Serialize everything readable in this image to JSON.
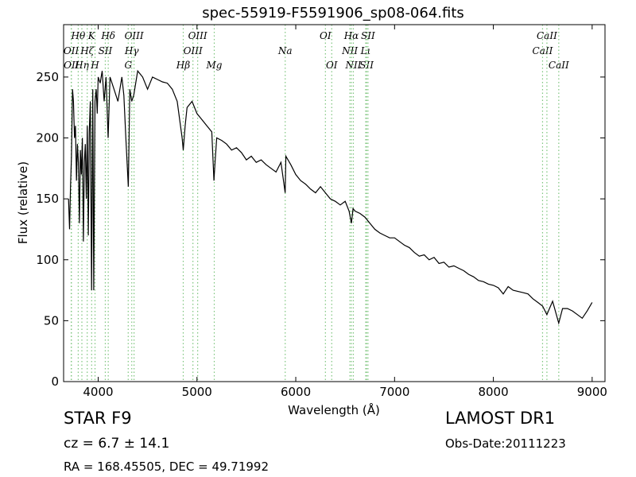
{
  "chart_data": {
    "type": "line",
    "title": "spec-55919-F5591906_sp08-064.fits",
    "xlabel": "Wavelength (Å)",
    "ylabel": "Flux (relative)",
    "xlim": [
      3650,
      9130
    ],
    "ylim": [
      0,
      293
    ],
    "xticks": [
      4000,
      5000,
      6000,
      7000,
      8000,
      9000
    ],
    "yticks": [
      0,
      50,
      100,
      150,
      200,
      250
    ],
    "grid": false,
    "line_color": "#000000",
    "marker_color": "#7cc47c",
    "series": [
      {
        "x": [
          3700,
          3710,
          3720,
          3730,
          3740,
          3750,
          3760,
          3770,
          3780,
          3790,
          3800,
          3810,
          3820,
          3830,
          3840,
          3850,
          3860,
          3870,
          3880,
          3890,
          3900,
          3910,
          3920,
          3933,
          3945,
          3955,
          3968,
          3980,
          3990,
          4000,
          4020,
          4040,
          4060,
          4080,
          4101,
          4120,
          4140,
          4160,
          4180,
          4200,
          4220,
          4240,
          4260,
          4280,
          4305,
          4320,
          4340,
          4360,
          4380,
          4400,
          4450,
          4500,
          4550,
          4600,
          4650,
          4700,
          4750,
          4800,
          4850,
          4861,
          4880,
          4900,
          4950,
          5000,
          5050,
          5100,
          5150,
          5172,
          5183,
          5200,
          5250,
          5300,
          5350,
          5400,
          5450,
          5500,
          5550,
          5600,
          5650,
          5700,
          5750,
          5800,
          5850,
          5893,
          5900,
          5950,
          6000,
          6050,
          6100,
          6150,
          6200,
          6250,
          6300,
          6350,
          6400,
          6450,
          6500,
          6540,
          6563,
          6580,
          6600,
          6650,
          6700,
          6750,
          6800,
          6850,
          6900,
          6950,
          7000,
          7050,
          7100,
          7150,
          7200,
          7250,
          7300,
          7350,
          7400,
          7450,
          7500,
          7550,
          7600,
          7650,
          7700,
          7750,
          7800,
          7850,
          7900,
          7950,
          8000,
          8050,
          8100,
          8150,
          8200,
          8250,
          8300,
          8350,
          8400,
          8450,
          8498,
          8542,
          8600,
          8662,
          8700,
          8750,
          8800,
          8850,
          8900,
          8950,
          9000
        ],
        "values": [
          150,
          125,
          160,
          185,
          240,
          230,
          200,
          210,
          165,
          195,
          180,
          130,
          190,
          170,
          200,
          115,
          180,
          195,
          150,
          210,
          120,
          205,
          230,
          75,
          240,
          75,
          230,
          240,
          220,
          250,
          245,
          255,
          230,
          250,
          200,
          250,
          245,
          240,
          235,
          230,
          240,
          250,
          235,
          200,
          160,
          240,
          230,
          235,
          245,
          255,
          250,
          240,
          250,
          248,
          246,
          245,
          240,
          230,
          200,
          190,
          210,
          225,
          230,
          220,
          215,
          210,
          205,
          165,
          180,
          200,
          198,
          195,
          190,
          192,
          188,
          182,
          185,
          180,
          182,
          178,
          175,
          172,
          180,
          155,
          185,
          178,
          170,
          165,
          162,
          158,
          155,
          160,
          155,
          150,
          148,
          145,
          148,
          140,
          130,
          142,
          140,
          138,
          135,
          130,
          125,
          122,
          120,
          118,
          118,
          115,
          112,
          110,
          106,
          103,
          104,
          100,
          102,
          97,
          98,
          94,
          95,
          93,
          91,
          88,
          86,
          83,
          82,
          80,
          79,
          77,
          72,
          78,
          75,
          74,
          73,
          72,
          68,
          65,
          62,
          55,
          66,
          48,
          60,
          60,
          58,
          55,
          52,
          58,
          65
        ]
      }
    ],
    "markers_top": [
      {
        "label": "OII",
        "x": 3727,
        "row": 2
      },
      {
        "label": "OII",
        "x": 3729,
        "row": 3
      },
      {
        "label": "Hθ",
        "x": 3798,
        "row": 1
      },
      {
        "label": "Hη",
        "x": 3835,
        "row": 3
      },
      {
        "label": "Hζ",
        "x": 3889,
        "row": 2
      },
      {
        "label": "K",
        "x": 3934,
        "row": 1
      },
      {
        "label": "H",
        "x": 3968,
        "row": 3
      },
      {
        "label": "SII",
        "x": 4072,
        "row": 2
      },
      {
        "label": "Hδ",
        "x": 4102,
        "row": 1
      },
      {
        "label": "G",
        "x": 4304,
        "row": 3
      },
      {
        "label": "Hγ",
        "x": 4340,
        "row": 2
      },
      {
        "label": "OIII",
        "x": 4363,
        "row": 1
      },
      {
        "label": "Hβ",
        "x": 4861,
        "row": 3
      },
      {
        "label": "OIII",
        "x": 4959,
        "row": 2
      },
      {
        "label": "OIII",
        "x": 5007,
        "row": 1
      },
      {
        "label": "Mg",
        "x": 5175,
        "row": 3
      },
      {
        "label": "Na",
        "x": 5893,
        "row": 2
      },
      {
        "label": "OI",
        "x": 6300,
        "row": 1
      },
      {
        "label": "OI",
        "x": 6364,
        "row": 3
      },
      {
        "label": "NII",
        "x": 6548,
        "row": 2
      },
      {
        "label": "NII",
        "x": 6583,
        "row": 3
      },
      {
        "label": "Hα",
        "x": 6563,
        "row": 1
      },
      {
        "label": "Lι",
        "x": 6708,
        "row": 2
      },
      {
        "label": "SII",
        "x": 6717,
        "row": 3
      },
      {
        "label": "SII",
        "x": 6731,
        "row": 1
      },
      {
        "label": "CaII",
        "x": 8498,
        "row": 2
      },
      {
        "label": "CaII",
        "x": 8542,
        "row": 1
      },
      {
        "label": "CaII",
        "x": 8662,
        "row": 3
      }
    ]
  },
  "info": {
    "class_label": "STAR   F9",
    "redshift": "cz = 6.7  ± 14.1",
    "coords": "RA = 168.45505, DEC = 49.71992",
    "survey": "LAMOST DR1",
    "obs_date": "Obs-Date:20111223"
  }
}
